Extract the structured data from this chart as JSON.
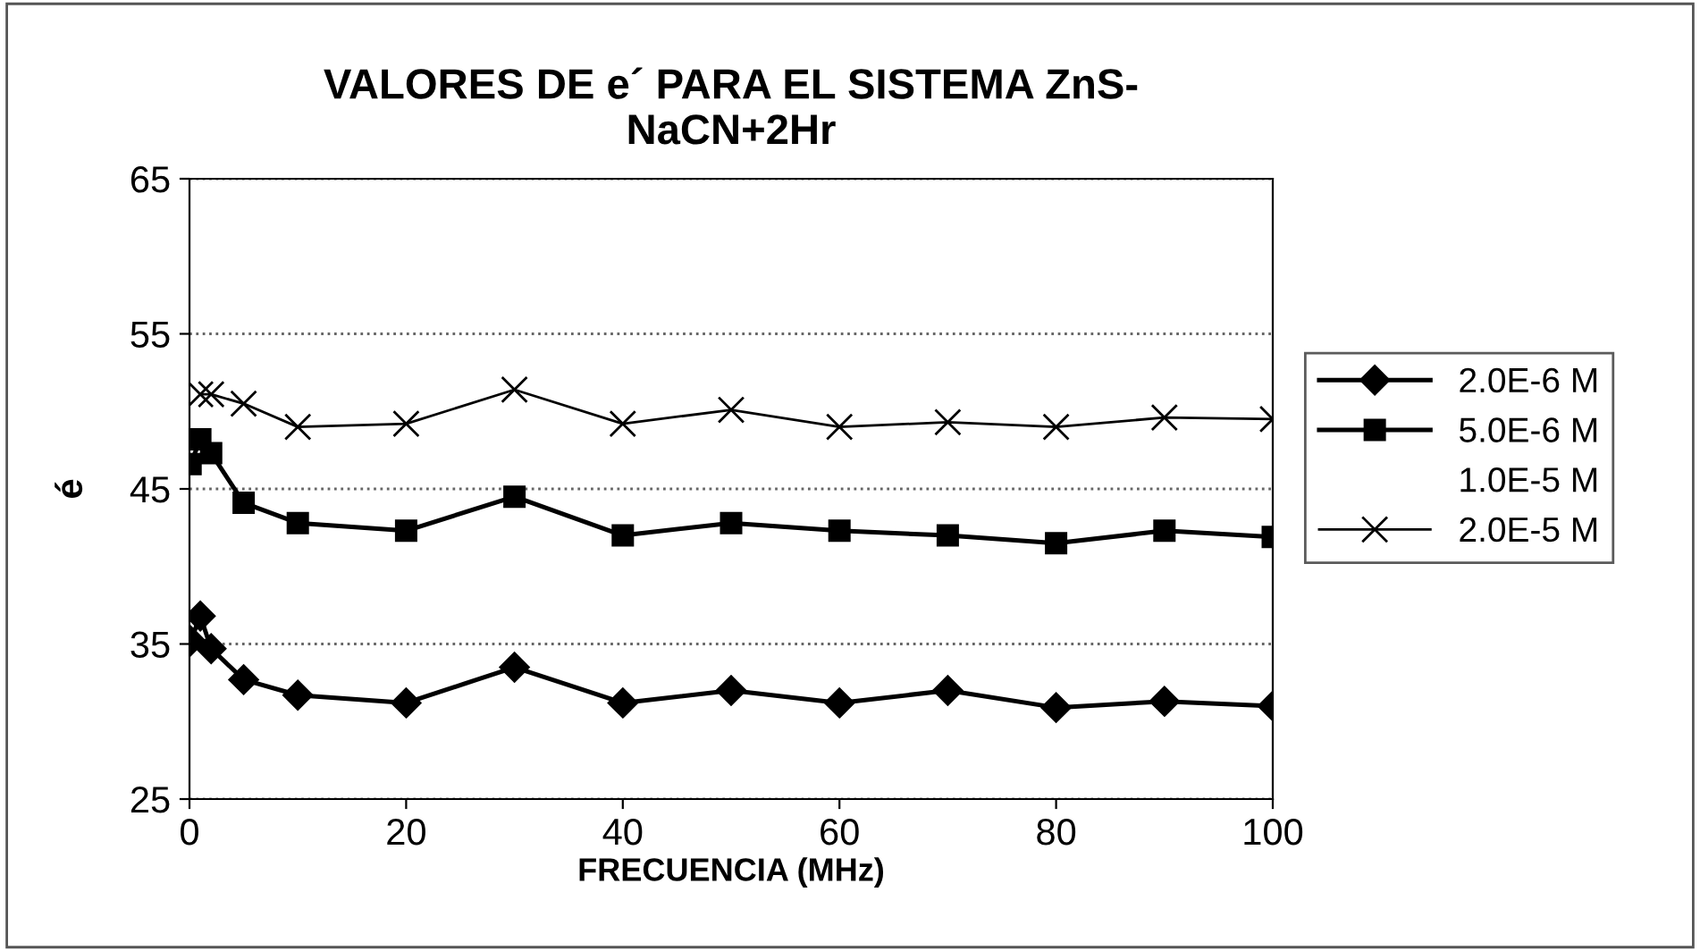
{
  "chart_data": {
    "type": "line",
    "title": "VALORES DE e´ PARA EL SISTEMA ZnS-\nNaCN+2Hr",
    "xlabel": "FRECUENCIA (MHz)",
    "ylabel": "é",
    "x": [
      0.1,
      1,
      2,
      5,
      10,
      20,
      30,
      40,
      50,
      60,
      70,
      80,
      90,
      100
    ],
    "series": [
      {
        "name": "2.0E-6 M",
        "color": "#000000",
        "marker": "diamond",
        "values": [
          35.2,
          36.8,
          34.7,
          32.7,
          31.7,
          31.2,
          33.5,
          31.2,
          32.0,
          31.2,
          32.0,
          30.9,
          31.3,
          31.0
        ]
      },
      {
        "name": "5.0E-6 M",
        "color": "#000000",
        "marker": "square",
        "values": [
          46.6,
          48.2,
          47.3,
          44.1,
          42.8,
          42.3,
          44.5,
          42.0,
          42.8,
          42.3,
          42.0,
          41.5,
          42.3,
          41.9
        ]
      },
      {
        "name": "1.0E-5 M",
        "marker": "none",
        "values": [
          null,
          null,
          null,
          null,
          null,
          null,
          null,
          null,
          null,
          null,
          null,
          null,
          null,
          null
        ]
      },
      {
        "name": "2.0E-5 M",
        "color": "#000000",
        "marker": "cross",
        "values": [
          null,
          51.1,
          51.1,
          50.5,
          49.0,
          49.2,
          51.4,
          49.2,
          50.1,
          49.0,
          49.3,
          49.0,
          49.6,
          49.5
        ]
      }
    ],
    "xlim": [
      0,
      100
    ],
    "xticks": [
      0,
      20,
      40,
      60,
      80,
      100
    ],
    "ylim": [
      25,
      65
    ],
    "yticks": [
      25,
      35,
      45,
      55,
      65
    ],
    "grid": "y",
    "legend": "right"
  }
}
